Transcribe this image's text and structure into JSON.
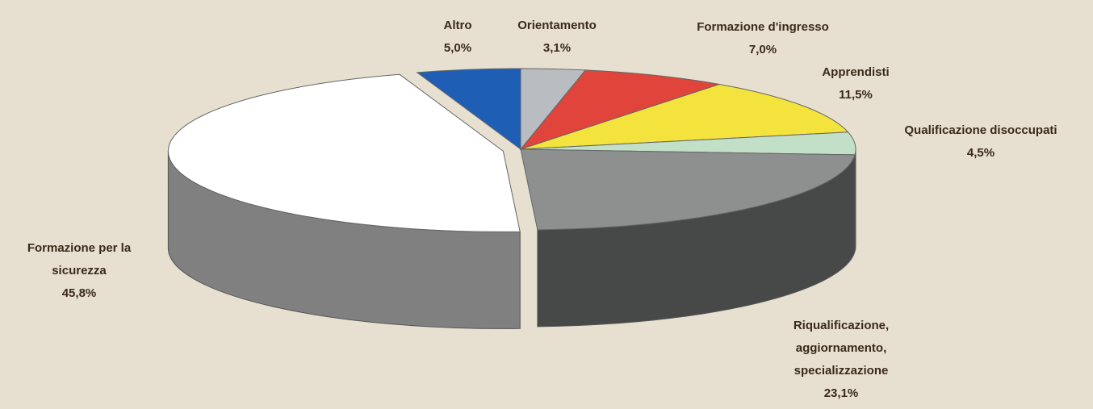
{
  "chart_data": {
    "type": "pie3d",
    "categories": [
      "Orientamento",
      "Formazione d'ingresso",
      "Apprendisti",
      "Qualificazione disoccupati",
      "Riqualificazione, aggiornamento, specializzazione",
      "Formazione per la sicurezza",
      "Altro"
    ],
    "values": [
      3.1,
      7.0,
      11.5,
      4.5,
      23.1,
      45.8,
      5.0
    ],
    "value_labels": [
      "3,1%",
      "7,0%",
      "11,5%",
      "4,5%",
      "23,1%",
      "45,8%",
      "5,0%"
    ],
    "colors": [
      "#b9bdc2",
      "#e0443a",
      "#f3e33c",
      "#c2dfc8",
      "#8d908f",
      "#ffffff",
      "#1f5eb5"
    ],
    "exploded": [
      false,
      false,
      false,
      false,
      false,
      true,
      false
    ]
  }
}
